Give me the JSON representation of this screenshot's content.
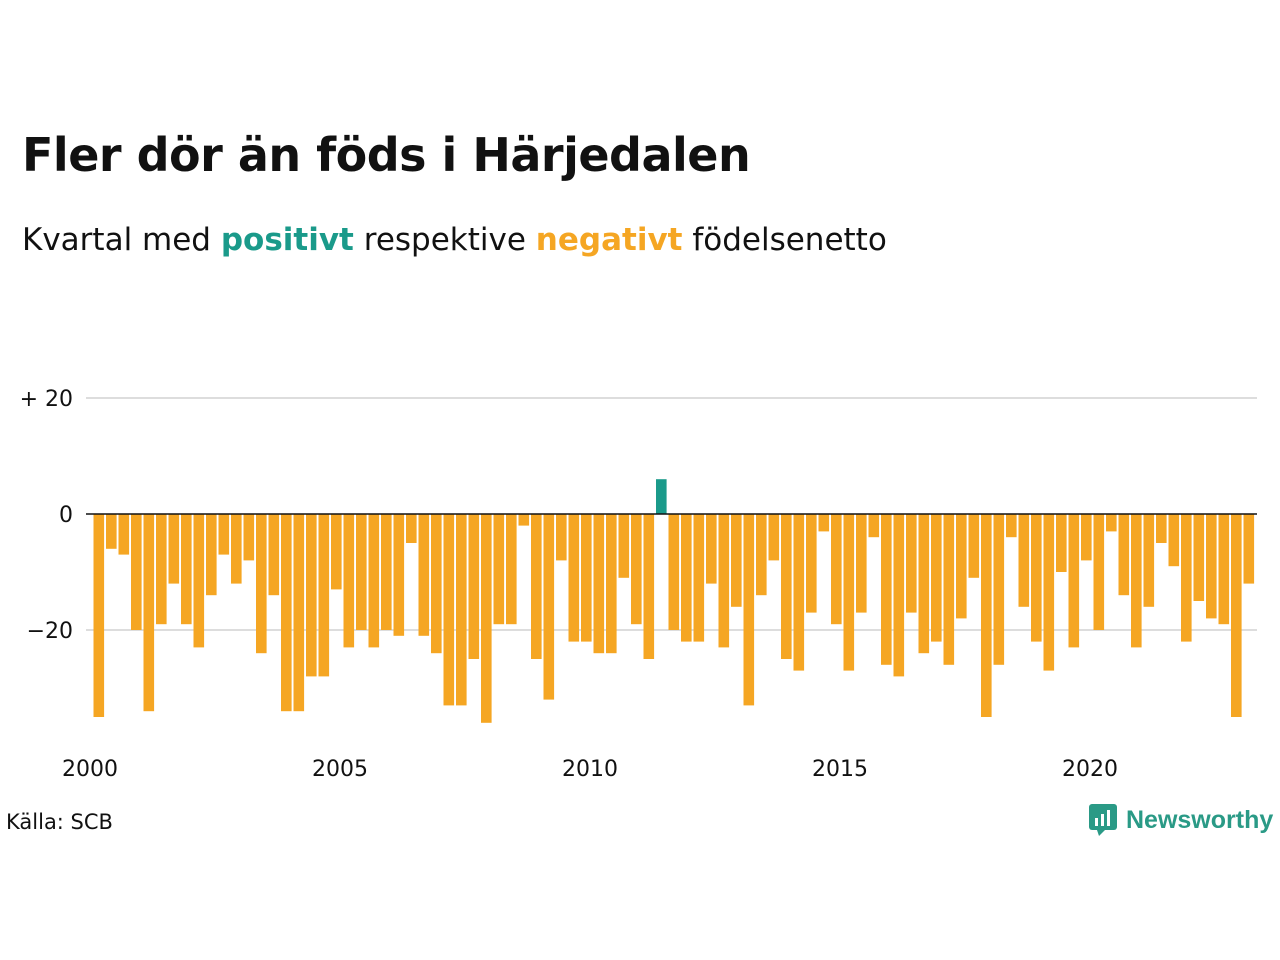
{
  "title": "Fler dör än föds i Härjedalen",
  "subtitle": {
    "prefix": "Kvartal med",
    "positive_word": "positivt",
    "middle": "respektive",
    "negative_word": "negativt",
    "suffix": "födelsenetto"
  },
  "source": "Källa: SCB",
  "logo": {
    "text": "Newsworthy",
    "icon": "newsworthy-chart-bubble-icon"
  },
  "colors": {
    "positive": "#1a9a8a",
    "negative": "#f5a623",
    "grid": "#dddddd",
    "zero_line": "#111111",
    "logo": "#2a9a86"
  },
  "chart_data": {
    "type": "bar",
    "frequency": "quarterly",
    "x_start": "2000 Q1",
    "x_tick_labels": [
      "2000",
      "2005",
      "2010",
      "2015",
      "2020"
    ],
    "y_tick_labels": [
      "+ 20",
      "0",
      "−20"
    ],
    "y_ticks": [
      20,
      0,
      -20
    ],
    "ylim": [
      -37,
      21
    ],
    "grid": true,
    "values": [
      -35,
      -6,
      -7,
      -20,
      -34,
      -19,
      -12,
      -19,
      -23,
      -14,
      -7,
      -12,
      -8,
      -24,
      -14,
      -34,
      -34,
      -28,
      -28,
      -13,
      -23,
      -20,
      -23,
      -20,
      -21,
      -5,
      -21,
      -24,
      -33,
      -33,
      -25,
      -36,
      -19,
      -19,
      -2,
      -25,
      -32,
      -8,
      -22,
      -22,
      -24,
      -24,
      -11,
      -19,
      -25,
      6,
      -20,
      -22,
      -22,
      -12,
      -23,
      -16,
      -33,
      -14,
      -8,
      -25,
      -27,
      -17,
      -3,
      -19,
      -27,
      -17,
      -4,
      -26,
      -28,
      -17,
      -24,
      -22,
      -26,
      -18,
      -11,
      -35,
      -26,
      -4,
      -16,
      -22,
      -27,
      -10,
      -23,
      -8,
      -20,
      -3,
      -14,
      -23,
      -16,
      -5,
      -9,
      -22,
      -15,
      -18,
      -19,
      -35,
      -12
    ]
  }
}
